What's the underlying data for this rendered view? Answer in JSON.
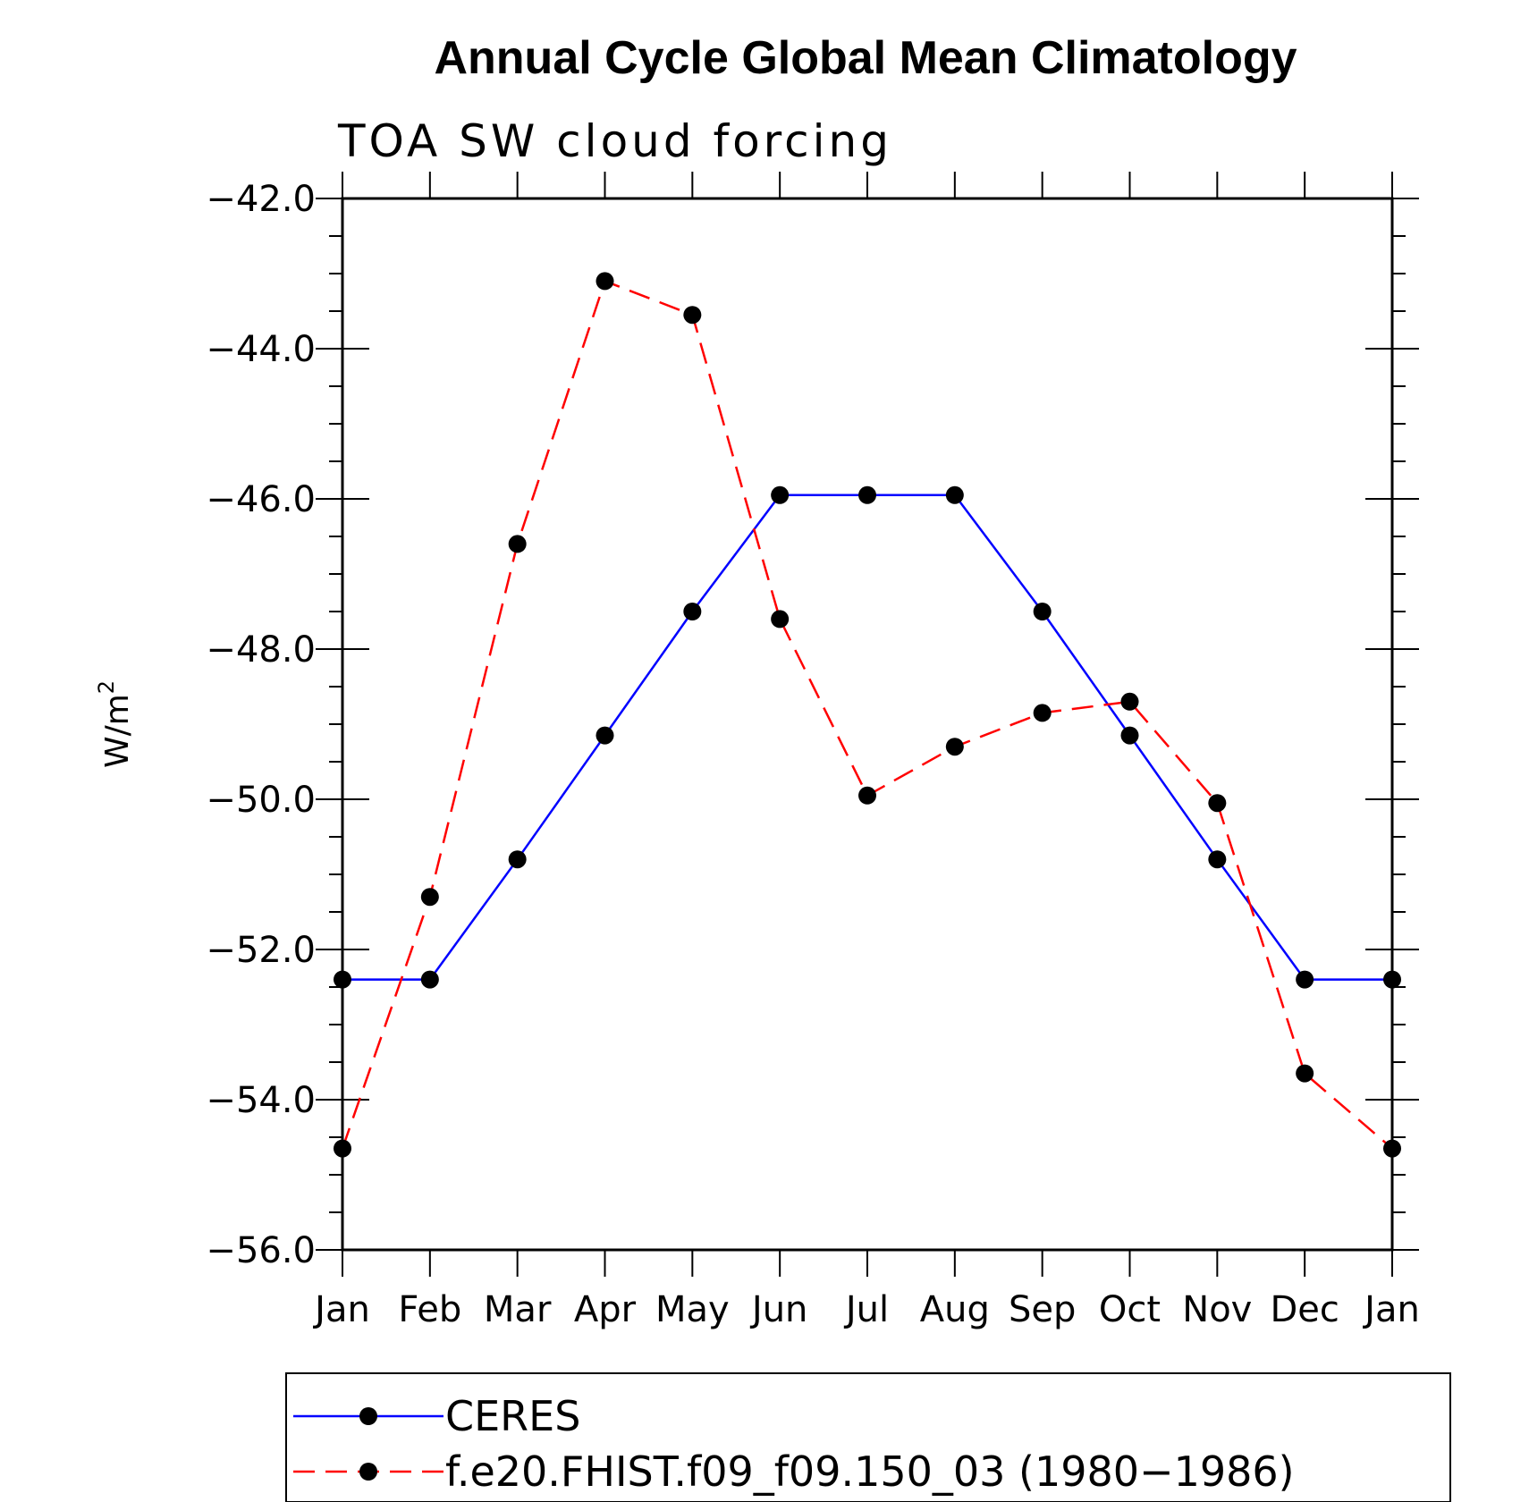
{
  "chart_data": {
    "type": "line",
    "title": "Annual Cycle Global Mean Climatology",
    "subtitle": "TOA SW cloud forcing",
    "ylabel": "W/m",
    "ylabel_sup": "2",
    "xlabel": "",
    "categories": [
      "Jan",
      "Feb",
      "Mar",
      "Apr",
      "May",
      "Jun",
      "Jul",
      "Aug",
      "Sep",
      "Oct",
      "Nov",
      "Dec",
      "Jan"
    ],
    "ylim": [
      -56.0,
      -42.0
    ],
    "yticks": [
      -42.0,
      -44.0,
      -46.0,
      -48.0,
      -50.0,
      -52.0,
      -54.0,
      -56.0
    ],
    "ytick_labels": [
      "−42.0",
      "−44.0",
      "−46.0",
      "−48.0",
      "−50.0",
      "−52.0",
      "−54.0",
      "−56.0"
    ],
    "grid": false,
    "legend_position": "bottom",
    "series": [
      {
        "name": "CERES",
        "color": "#0000ff",
        "dashed": false,
        "marker": "filled-circle",
        "values": [
          -52.4,
          -52.4,
          -50.8,
          -49.15,
          -47.5,
          -45.95,
          -45.95,
          -45.95,
          -47.5,
          -49.15,
          -50.8,
          -52.4,
          -52.4
        ]
      },
      {
        "name": "f.e20.FHIST.f09_f09.150_03 (1980−1986)",
        "color": "#ff0000",
        "dashed": true,
        "marker": "filled-circle",
        "values": [
          -54.65,
          -51.3,
          -46.6,
          -43.1,
          -43.55,
          -47.6,
          -49.95,
          -49.3,
          -48.85,
          -48.7,
          -50.05,
          -53.65,
          -54.65
        ]
      }
    ]
  }
}
